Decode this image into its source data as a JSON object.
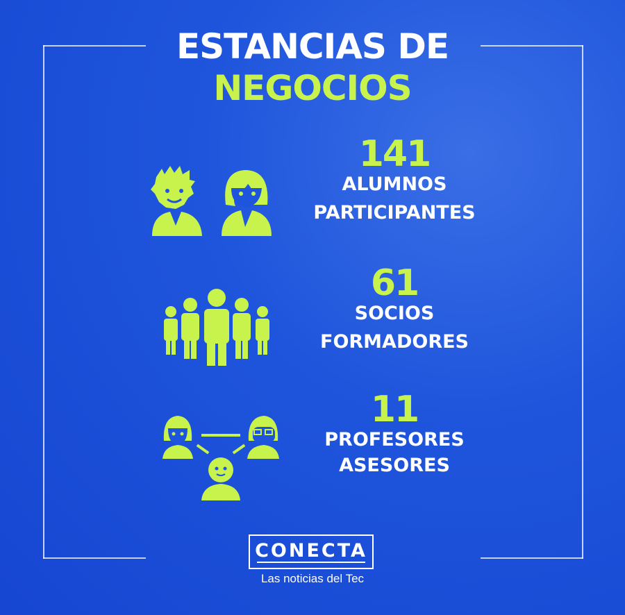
{
  "title": {
    "line1": "ESTANCIAS DE",
    "line2": "NEGOCIOS"
  },
  "colors": {
    "background": "#1a4fd8",
    "accent": "#c8f24c",
    "text": "#ffffff"
  },
  "stats": [
    {
      "value": "141",
      "label1": "ALUMNOS",
      "label2": "PARTICIPANTES",
      "icon": "students-icon"
    },
    {
      "value": "61",
      "label1": "SOCIOS",
      "label2": "FORMADORES",
      "icon": "group-people-icon"
    },
    {
      "value": "11",
      "label1": "PROFESORES",
      "label2": "ASESORES",
      "icon": "advisors-network-icon"
    }
  ],
  "logo": {
    "name": "CONECTA",
    "tagline": "Las noticias del Tec"
  }
}
